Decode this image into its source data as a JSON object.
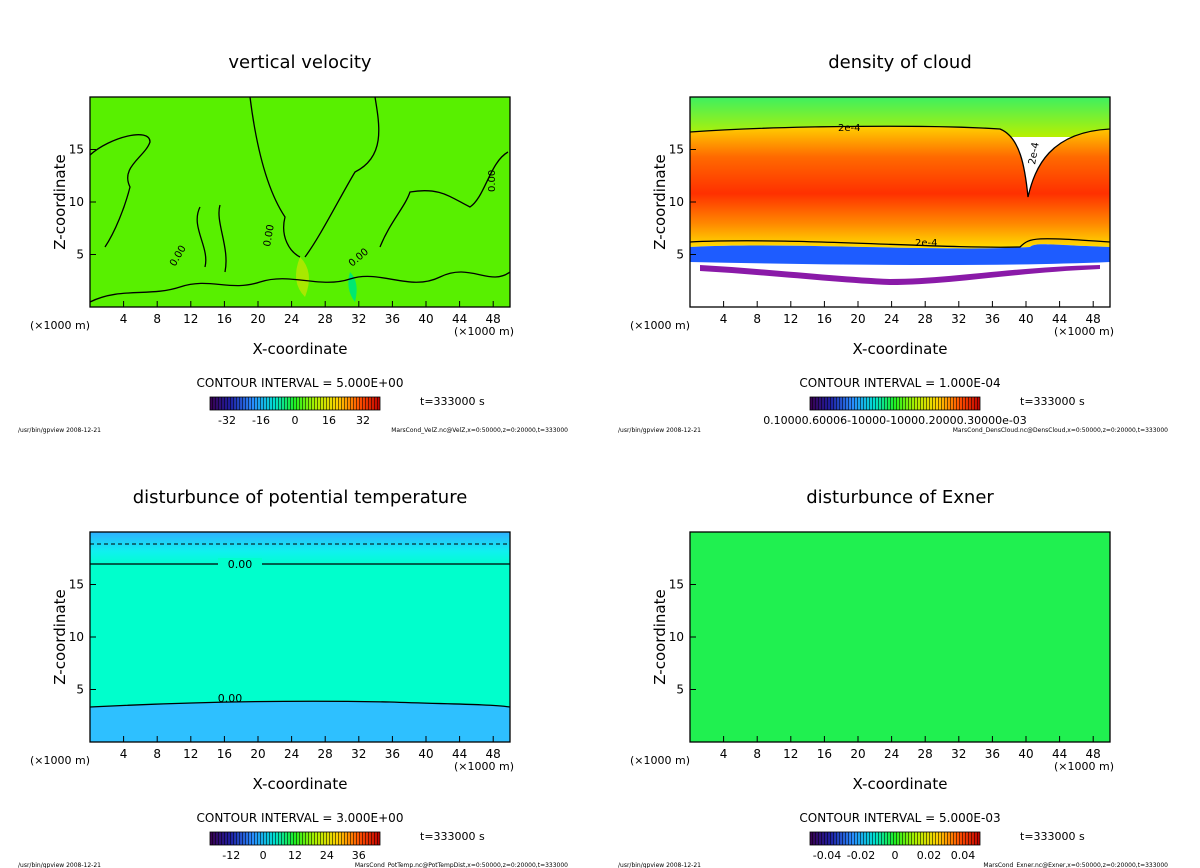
{
  "chart_data": [
    {
      "type": "heatmap",
      "title": "vertical velocity",
      "xlabel": "X-coordinate",
      "ylabel": "Z-coordinate",
      "x_unit": "(×1000 m)",
      "x_unit_left": "(×1000 m)",
      "xlim": [
        0,
        50
      ],
      "ylim": [
        0,
        20
      ],
      "xticks": [
        4,
        8,
        12,
        16,
        20,
        24,
        28,
        32,
        36,
        40,
        44,
        48
      ],
      "yticks": [
        5,
        10,
        15
      ],
      "contour_interval": "CONTOUR INTERVAL = 5.000E+00",
      "time": "t=333000 s",
      "colorbar_ticks": [
        "-32",
        "-16",
        "0",
        "16",
        "32"
      ],
      "contour_labels": [
        "0.00"
      ],
      "footer_left": "/usr/bin/gpview  2008-12-21",
      "footer_right": "MarsCond_VelZ.nc@VelZ,x=0:50000,z=0:20000,t=333000"
    },
    {
      "type": "heatmap",
      "title": "density of cloud",
      "xlabel": "X-coordinate",
      "ylabel": "Z-coordinate",
      "x_unit": "(×1000 m)",
      "x_unit_left": "(×1000 m)",
      "xlim": [
        0,
        50
      ],
      "ylim": [
        0,
        20
      ],
      "xticks": [
        4,
        8,
        12,
        16,
        20,
        24,
        28,
        32,
        36,
        40,
        44,
        48
      ],
      "yticks": [
        5,
        10,
        15
      ],
      "contour_interval": "CONTOUR INTERVAL = 1.000E-04",
      "time": "t=333000 s",
      "colorbar_ticks": [
        "0.10000.60006-10000-10000.20000.30000e-03"
      ],
      "contour_labels": [
        "2e-4"
      ],
      "footer_left": "/usr/bin/gpview  2008-12-21",
      "footer_right": "MarsCond_DensCloud.nc@DensCloud,x=0:50000,z=0:20000,t=333000"
    },
    {
      "type": "heatmap",
      "title": "disturbunce of potential temperature",
      "xlabel": "X-coordinate",
      "ylabel": "Z-coordinate",
      "x_unit": "(×1000 m)",
      "x_unit_left": "(×1000 m)",
      "xlim": [
        0,
        50
      ],
      "ylim": [
        0,
        20
      ],
      "xticks": [
        4,
        8,
        12,
        16,
        20,
        24,
        28,
        32,
        36,
        40,
        44,
        48
      ],
      "yticks": [
        5,
        10,
        15
      ],
      "contour_interval": "CONTOUR INTERVAL = 3.000E+00",
      "time": "t=333000 s",
      "colorbar_ticks": [
        "-12",
        "0",
        "12",
        "24",
        "36"
      ],
      "contour_labels": [
        "0.00"
      ],
      "footer_left": "/usr/bin/gpview  2008-12-21",
      "footer_right": "MarsCond_PotTemp.nc@PotTempDist,x=0:50000,z=0:20000,t=333000"
    },
    {
      "type": "heatmap",
      "title": "disturbunce of Exner",
      "xlabel": "X-coordinate",
      "ylabel": "Z-coordinate",
      "x_unit": "(×1000 m)",
      "x_unit_left": "(×1000 m)",
      "xlim": [
        0,
        50
      ],
      "ylim": [
        0,
        20
      ],
      "xticks": [
        4,
        8,
        12,
        16,
        20,
        24,
        28,
        32,
        36,
        40,
        44,
        48
      ],
      "yticks": [
        5,
        10,
        15
      ],
      "contour_interval": "CONTOUR INTERVAL = 5.000E-03",
      "time": "t=333000 s",
      "colorbar_ticks": [
        "-0.04",
        "-0.02",
        "0",
        "0.02",
        "0.04"
      ],
      "contour_labels": [],
      "footer_left": "/usr/bin/gpview  2008-12-21",
      "footer_right": "MarsCond_Exner.nc@Exner,x=0:50000,z=0:20000,t=333000"
    }
  ]
}
